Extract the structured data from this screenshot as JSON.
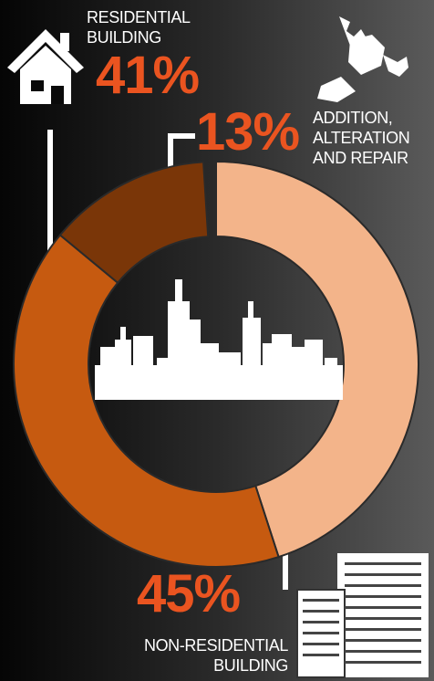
{
  "chart_data": {
    "type": "donut",
    "categories": [
      "NON-RESIDENTIAL BUILDING",
      "RESIDENTIAL BUILDING",
      "ADDITION, ALTERATION AND REPAIR"
    ],
    "values": [
      45,
      41,
      13
    ],
    "value_labels": [
      "45%",
      "41%",
      "13%"
    ],
    "colors": [
      "#f3b48a",
      "#c65a10",
      "#7a3608"
    ]
  }
}
